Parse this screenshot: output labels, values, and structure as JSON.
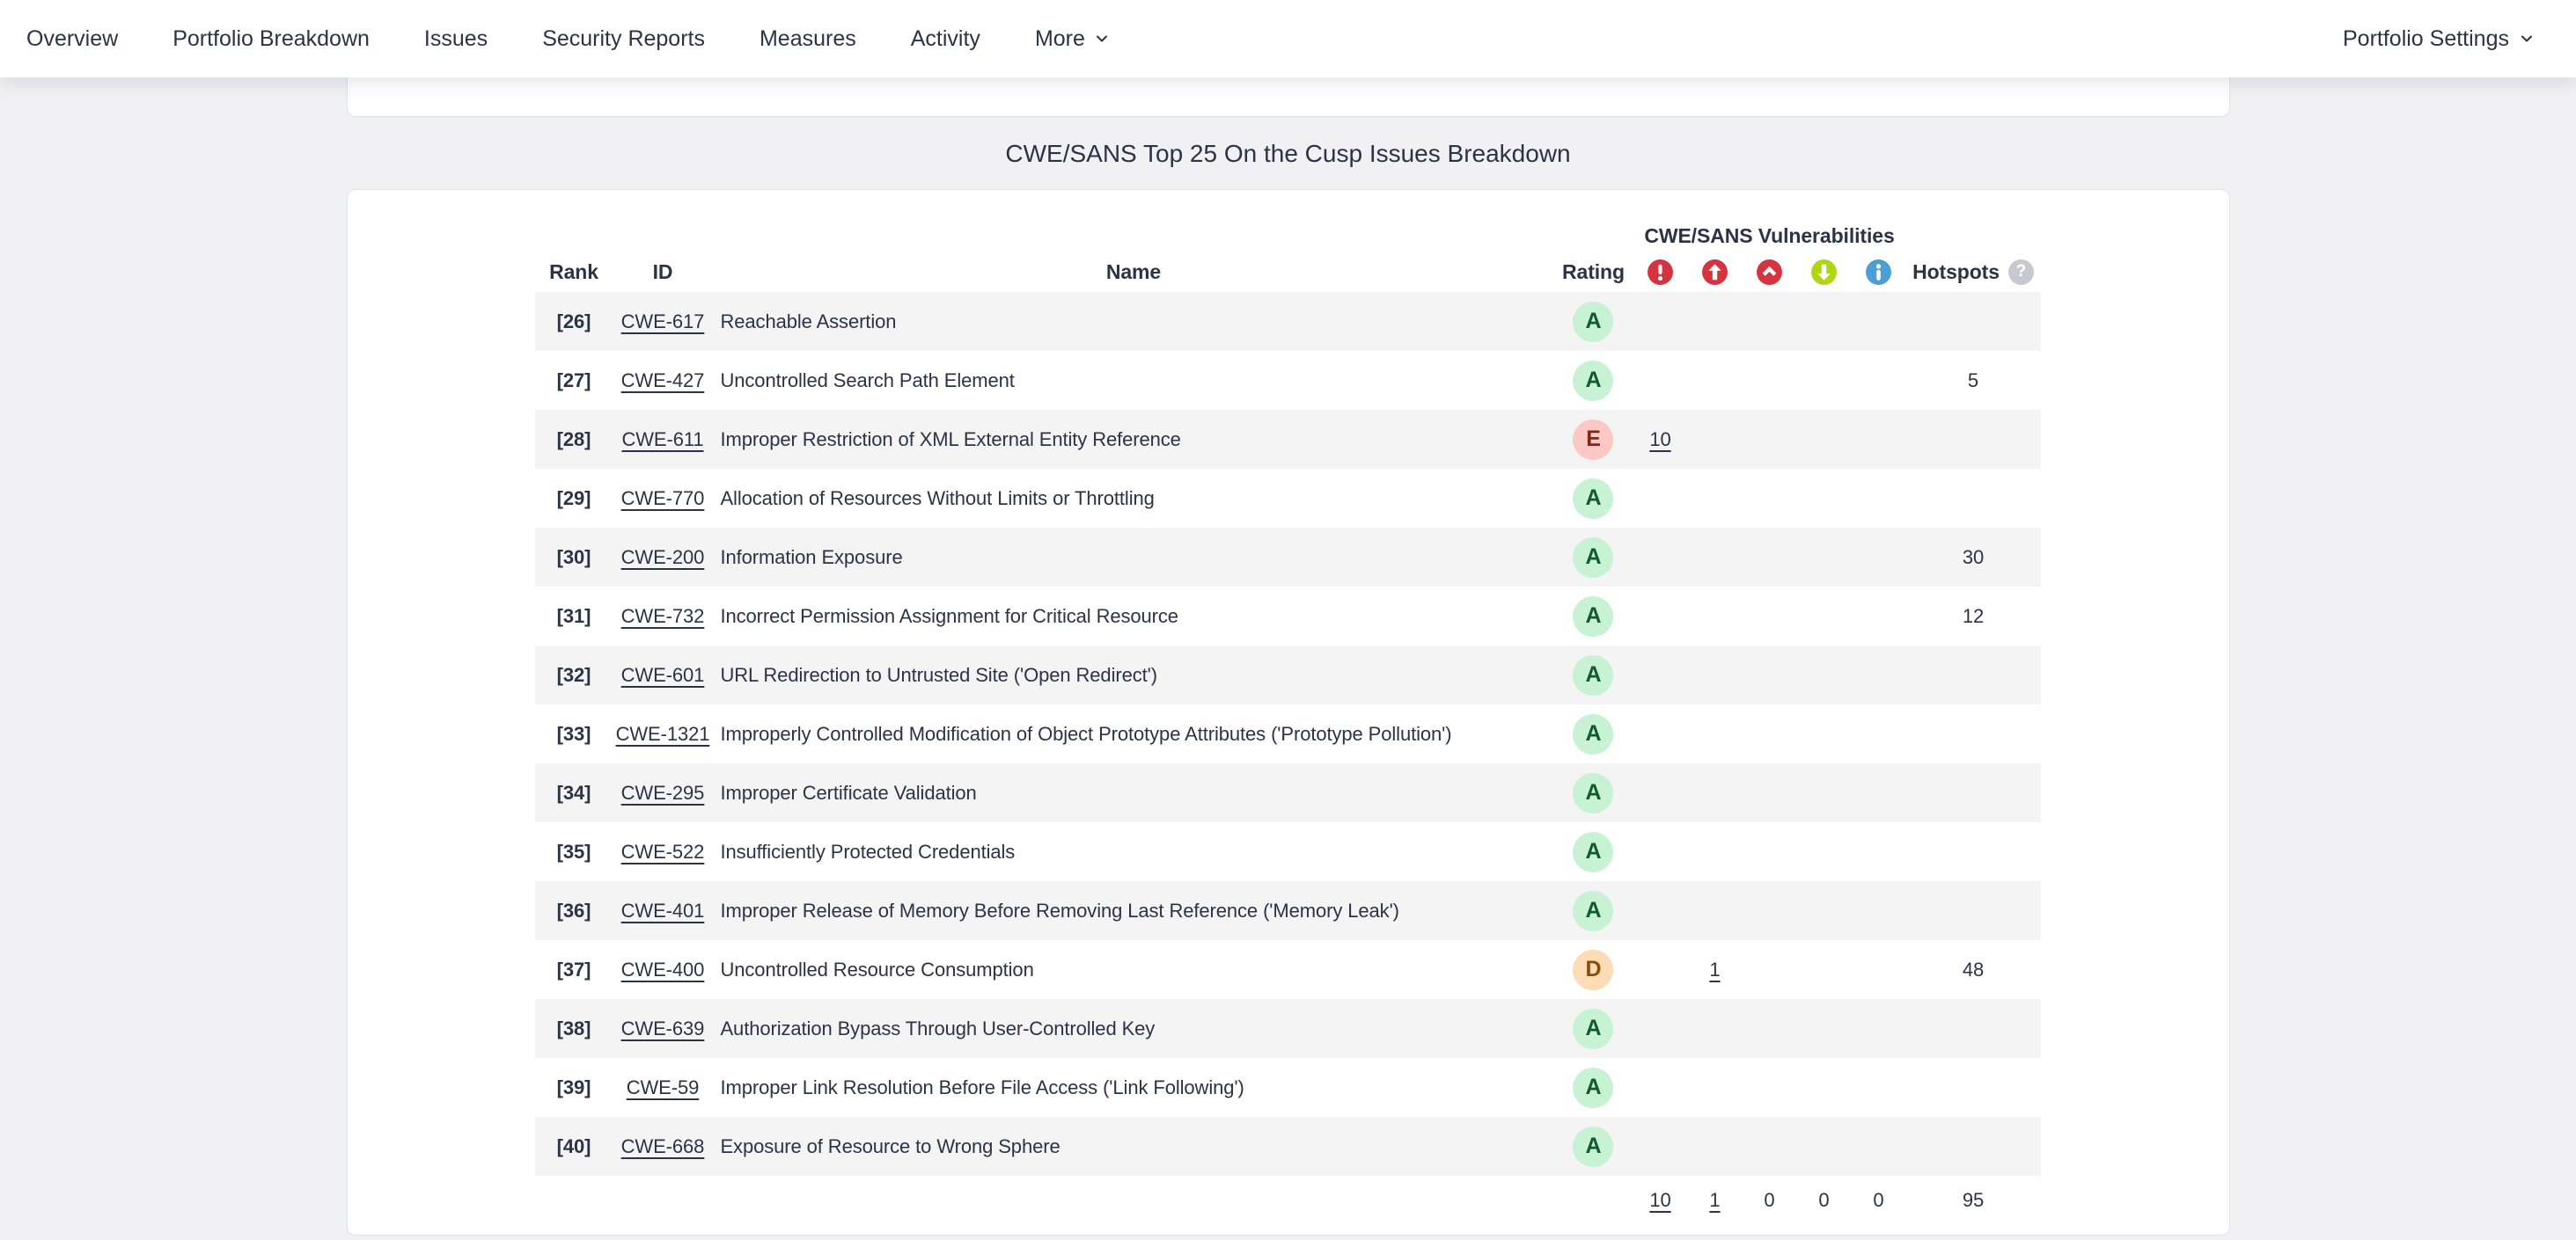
{
  "nav": {
    "items": [
      "Overview",
      "Portfolio Breakdown",
      "Issues",
      "Security Reports",
      "Measures",
      "Activity"
    ],
    "more_label": "More",
    "settings_label": "Portfolio Settings"
  },
  "title": "CWE/SANS Top 25 On the Cusp Issues Breakdown",
  "table": {
    "headers": {
      "rank": "Rank",
      "id": "ID",
      "name": "Name",
      "rating": "Rating",
      "vuln_group": "CWE/SANS Vulnerabilities",
      "hotspots": "Hotspots"
    },
    "severity_columns": [
      "blocker",
      "critical",
      "major",
      "minor",
      "info"
    ],
    "rows": [
      {
        "rank": "[26]",
        "id": "CWE-617",
        "name": "Reachable Assertion",
        "rating": "A",
        "vulns": [
          "",
          "",
          "",
          "",
          ""
        ],
        "hotspots": ""
      },
      {
        "rank": "[27]",
        "id": "CWE-427",
        "name": "Uncontrolled Search Path Element",
        "rating": "A",
        "vulns": [
          "",
          "",
          "",
          "",
          ""
        ],
        "hotspots": "5"
      },
      {
        "rank": "[28]",
        "id": "CWE-611",
        "name": "Improper Restriction of XML External Entity Reference",
        "rating": "E",
        "vulns": [
          "10",
          "",
          "",
          "",
          ""
        ],
        "hotspots": ""
      },
      {
        "rank": "[29]",
        "id": "CWE-770",
        "name": "Allocation of Resources Without Limits or Throttling",
        "rating": "A",
        "vulns": [
          "",
          "",
          "",
          "",
          ""
        ],
        "hotspots": ""
      },
      {
        "rank": "[30]",
        "id": "CWE-200",
        "name": "Information Exposure",
        "rating": "A",
        "vulns": [
          "",
          "",
          "",
          "",
          ""
        ],
        "hotspots": "30"
      },
      {
        "rank": "[31]",
        "id": "CWE-732",
        "name": "Incorrect Permission Assignment for Critical Resource",
        "rating": "A",
        "vulns": [
          "",
          "",
          "",
          "",
          ""
        ],
        "hotspots": "12"
      },
      {
        "rank": "[32]",
        "id": "CWE-601",
        "name": "URL Redirection to Untrusted Site ('Open Redirect')",
        "rating": "A",
        "vulns": [
          "",
          "",
          "",
          "",
          ""
        ],
        "hotspots": ""
      },
      {
        "rank": "[33]",
        "id": "CWE-1321",
        "name": "Improperly Controlled Modification of Object Prototype Attributes ('Prototype Pollution')",
        "rating": "A",
        "vulns": [
          "",
          "",
          "",
          "",
          ""
        ],
        "hotspots": ""
      },
      {
        "rank": "[34]",
        "id": "CWE-295",
        "name": "Improper Certificate Validation",
        "rating": "A",
        "vulns": [
          "",
          "",
          "",
          "",
          ""
        ],
        "hotspots": ""
      },
      {
        "rank": "[35]",
        "id": "CWE-522",
        "name": "Insufficiently Protected Credentials",
        "rating": "A",
        "vulns": [
          "",
          "",
          "",
          "",
          ""
        ],
        "hotspots": ""
      },
      {
        "rank": "[36]",
        "id": "CWE-401",
        "name": "Improper Release of Memory Before Removing Last Reference ('Memory Leak')",
        "rating": "A",
        "vulns": [
          "",
          "",
          "",
          "",
          ""
        ],
        "hotspots": ""
      },
      {
        "rank": "[37]",
        "id": "CWE-400",
        "name": "Uncontrolled Resource Consumption",
        "rating": "D",
        "vulns": [
          "",
          "1",
          "",
          "",
          ""
        ],
        "hotspots": "48"
      },
      {
        "rank": "[38]",
        "id": "CWE-639",
        "name": "Authorization Bypass Through User-Controlled Key",
        "rating": "A",
        "vulns": [
          "",
          "",
          "",
          "",
          ""
        ],
        "hotspots": ""
      },
      {
        "rank": "[39]",
        "id": "CWE-59",
        "name": "Improper Link Resolution Before File Access ('Link Following')",
        "rating": "A",
        "vulns": [
          "",
          "",
          "",
          "",
          ""
        ],
        "hotspots": ""
      },
      {
        "rank": "[40]",
        "id": "CWE-668",
        "name": "Exposure of Resource to Wrong Sphere",
        "rating": "A",
        "vulns": [
          "",
          "",
          "",
          "",
          ""
        ],
        "hotspots": ""
      }
    ],
    "totals": {
      "vulns": [
        "10",
        "1",
        "0",
        "0",
        "0"
      ],
      "hotspots": "95"
    }
  },
  "colors": {
    "text": "#2b3345",
    "stripe": "#f4f4f5",
    "card_border": "#dfe3ee",
    "help_icon_bg": "#c6c9d0",
    "severity": {
      "blocker": "#d4333f",
      "critical": "#d4333f",
      "major": "#d4333f",
      "minor": "#b0d513",
      "info": "#4b9fd5"
    },
    "ratings": {
      "A": {
        "bg": "#c8f2d4",
        "fg": "#125b2f"
      },
      "D": {
        "bg": "#fbdcb5",
        "fg": "#8f4a0b"
      },
      "E": {
        "bg": "#fbc8c6",
        "fg": "#82261a"
      }
    }
  }
}
